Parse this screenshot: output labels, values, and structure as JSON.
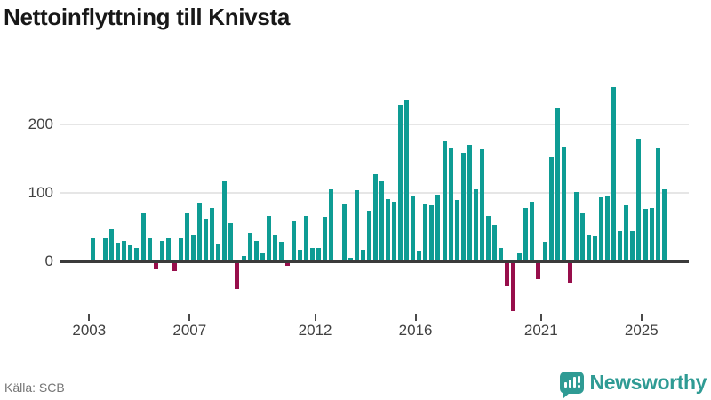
{
  "header": {
    "title": "Nettoinflyttning till Knivsta"
  },
  "footer": {
    "source": "Källa: SCB",
    "brand_name": "Newsworthy"
  },
  "colors": {
    "positive_bar": "#0e9c94",
    "negative_bar": "#970e4b",
    "axis_line": "#3b3b3b",
    "gridline": "#e6e6e6",
    "axis_text": "#414141",
    "title_text": "#181818",
    "source_text": "#757575",
    "brand_teal": "#2f9b94"
  },
  "chart_data": {
    "type": "bar",
    "title": "Nettoinflyttning till Knivsta",
    "frequency": "quarterly",
    "start": "2003 Q1",
    "end": "2025 Q4",
    "values": [
      32,
      0,
      32,
      46,
      26,
      28,
      22,
      18,
      69,
      32,
      -9,
      28,
      32,
      -11,
      32,
      69,
      37,
      84,
      61,
      77,
      25,
      115,
      55,
      -37,
      7,
      40,
      28,
      10,
      65,
      37,
      27,
      -4,
      57,
      15,
      65,
      18,
      18,
      64,
      103,
      0,
      81,
      4,
      102,
      15,
      72,
      125,
      115,
      90,
      85,
      226,
      234,
      93,
      14,
      83,
      80,
      96,
      173,
      163,
      88,
      157,
      168,
      104,
      162,
      65,
      52,
      18,
      -34,
      -70,
      11,
      77,
      86,
      -23,
      27,
      150,
      221,
      166,
      -28,
      100,
      69,
      37,
      36,
      92,
      94,
      252,
      43,
      80,
      43,
      177,
      75,
      77,
      164,
      103
    ],
    "x_tick_years": [
      "2003",
      "2007",
      "2012",
      "2016",
      "2021",
      "2025"
    ],
    "y_ticks": [
      0,
      100,
      200
    ],
    "ylim": [
      -75,
      260
    ],
    "grid": "horizontal",
    "legend": "none"
  }
}
